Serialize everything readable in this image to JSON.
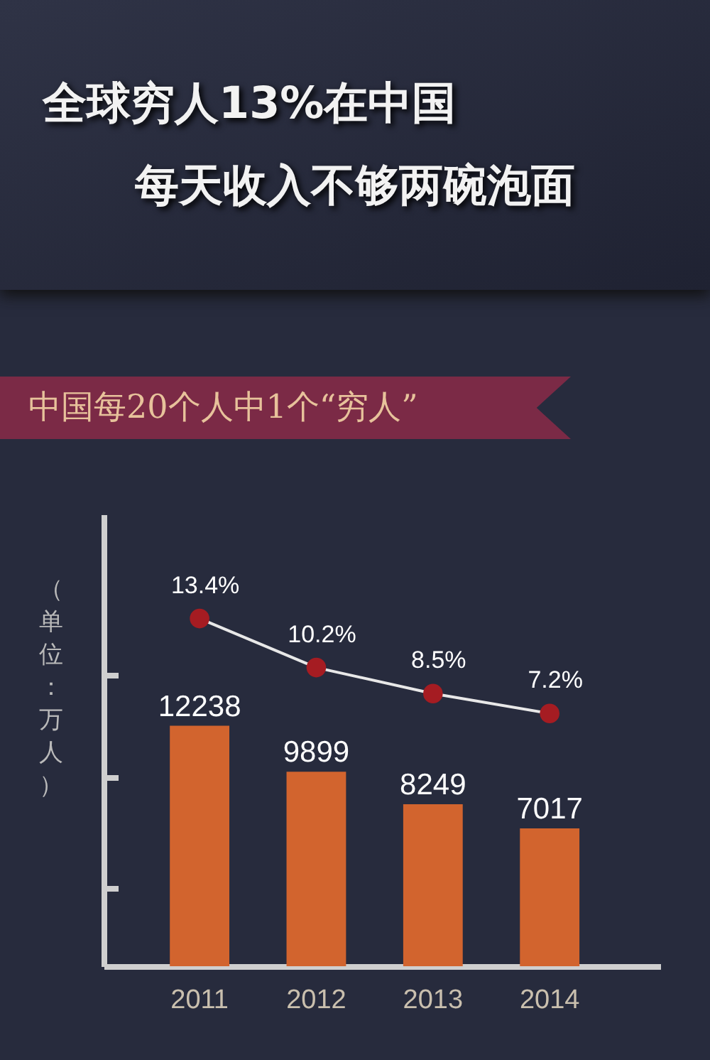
{
  "chart_data": {
    "type": "bar",
    "title": "全球穷人13%在中国",
    "subtitle": "每天收入不够两碗泡面",
    "annotations": [
      "中国每20个人中1个“穷人”"
    ],
    "ylabel": "（单位：万人）",
    "categories": [
      "2011",
      "2012",
      "2013",
      "2014"
    ],
    "ylim": [
      0,
      23000
    ],
    "yticks": [
      {
        "value": 4000,
        "label": null
      },
      {
        "value": 9600,
        "label": null
      },
      {
        "value": 14800,
        "label": null
      }
    ],
    "y2lim": [
      -9.3,
      20.2
    ],
    "tick_labels": "x",
    "marker": "circle",
    "series": [
      {
        "color": "#d2642e",
        "values": [
          12238,
          9899,
          8249,
          7017
        ],
        "value_labels": [
          "12238",
          "9899",
          "8249",
          "7017"
        ]
      },
      {
        "type": "line",
        "axis": "y2",
        "color": "#a51c22",
        "values": [
          13.4,
          10.2,
          8.5,
          7.2
        ],
        "value_labels": [
          "13.4%",
          "10.2%",
          "8.5%",
          "7.2%"
        ]
      }
    ]
  }
}
